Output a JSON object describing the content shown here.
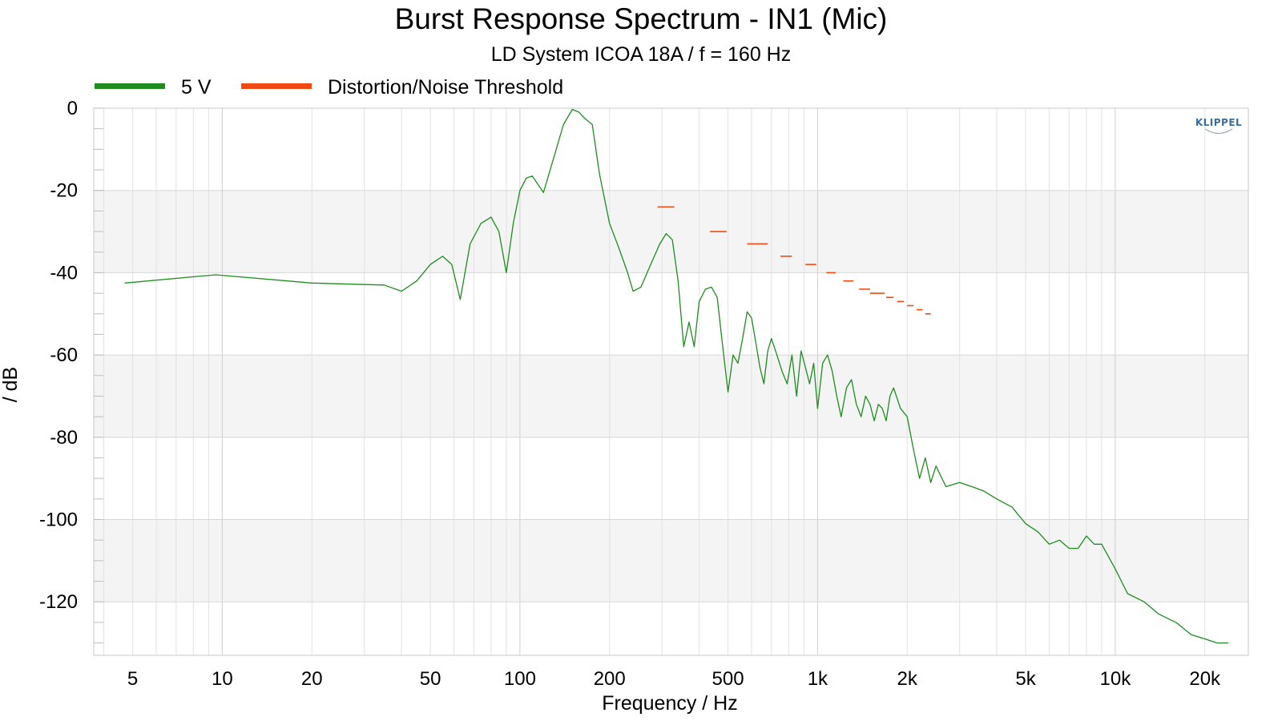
{
  "chart_data": {
    "type": "line",
    "title": "Burst Response Spectrum - IN1 (Mic)",
    "subtitle": "LD System ICOA 18A / f = 160 Hz",
    "xlabel": "Frequency / Hz",
    "ylabel": "/ dB",
    "xscale": "log",
    "xlim": [
      3.7,
      28000
    ],
    "ylim": [
      -133,
      0
    ],
    "x_ticks": [
      5,
      10,
      20,
      50,
      100,
      200,
      500,
      1000,
      2000,
      5000,
      10000,
      20000
    ],
    "x_tick_labels": [
      "5",
      "10",
      "20",
      "50",
      "100",
      "200",
      "500",
      "1k",
      "2k",
      "5k",
      "10k",
      "20k"
    ],
    "y_ticks": [
      0,
      -20,
      -40,
      -60,
      -80,
      -100,
      -120
    ],
    "y_tick_labels": [
      "0",
      "-20",
      "-40",
      "-60",
      "-80",
      "-100",
      "-120"
    ],
    "grid": true,
    "legend_position": "top-left",
    "watermark": "KLIPPEL",
    "series": [
      {
        "name": "5 V",
        "color": "#1e8c1e",
        "x": [
          4.7,
          9.5,
          20,
          35,
          40,
          45,
          50,
          55,
          59,
          63,
          68,
          74,
          80,
          85,
          90,
          95,
          100,
          105,
          110,
          120,
          130,
          140,
          150,
          158,
          165,
          175,
          185,
          200,
          215,
          230,
          240,
          255,
          275,
          295,
          310,
          325,
          340,
          355,
          370,
          385,
          400,
          420,
          440,
          460,
          480,
          500,
          520,
          540,
          560,
          580,
          600,
          620,
          640,
          660,
          680,
          700,
          730,
          760,
          790,
          820,
          850,
          880,
          910,
          940,
          970,
          1000,
          1040,
          1080,
          1120,
          1160,
          1200,
          1250,
          1300,
          1350,
          1400,
          1450,
          1500,
          1550,
          1600,
          1650,
          1700,
          1750,
          1800,
          1900,
          2000,
          2100,
          2200,
          2300,
          2400,
          2500,
          2700,
          3000,
          3300,
          3600,
          4000,
          4500,
          5000,
          5500,
          6000,
          6500,
          7000,
          7500,
          8000,
          8500,
          9000,
          10000,
          11000,
          12500,
          14000,
          16000,
          18000,
          20000,
          22000,
          24000
        ],
        "y": [
          -42.5,
          -40.5,
          -42.5,
          -43,
          -44.5,
          -42,
          -38,
          -36,
          -38,
          -46.5,
          -33,
          -28,
          -26.5,
          -30,
          -40,
          -28,
          -20,
          -17,
          -16.5,
          -20.5,
          -12,
          -4,
          -0.3,
          -1,
          -2.5,
          -4,
          -16,
          -28,
          -34,
          -40,
          -44.5,
          -43.5,
          -38,
          -33,
          -30.5,
          -32,
          -42,
          -58,
          -52,
          -58,
          -47,
          -44,
          -43.5,
          -46,
          -58,
          -69,
          -60,
          -62,
          -56,
          -49.5,
          -51,
          -57,
          -63,
          -67,
          -59,
          -56,
          -60,
          -64,
          -67,
          -60,
          -70,
          -59,
          -63,
          -67,
          -62,
          -73,
          -62,
          -60,
          -64,
          -70,
          -75,
          -68,
          -66,
          -72,
          -75,
          -70,
          -72,
          -76,
          -72,
          -73,
          -76,
          -70,
          -68,
          -73,
          -75,
          -83,
          -90,
          -85,
          -91,
          -87,
          -92,
          -91,
          -92,
          -93,
          -95,
          -97,
          -101,
          -103,
          -106,
          -105,
          -107,
          -107,
          -104,
          -106,
          -106,
          -112,
          -118,
          -120,
          -123,
          -125,
          -128,
          -129,
          -130,
          -130
        ]
      },
      {
        "name": "Distortion/Noise Threshold",
        "color": "#f04a12",
        "segments": [
          {
            "x": [
              290,
              330
            ],
            "y": -24
          },
          {
            "x": [
              435,
              495
            ],
            "y": -30
          },
          {
            "x": [
              580,
              680
            ],
            "y": -33
          },
          {
            "x": [
              750,
              820
            ],
            "y": -36
          },
          {
            "x": [
              910,
              990
            ],
            "y": -38
          },
          {
            "x": [
              1070,
              1150
            ],
            "y": -40
          },
          {
            "x": [
              1220,
              1320
            ],
            "y": -42
          },
          {
            "x": [
              1380,
              1500
            ],
            "y": -44
          },
          {
            "x": [
              1500,
              1680
            ],
            "y": -45
          },
          {
            "x": [
              1700,
              1800
            ],
            "y": -46
          },
          {
            "x": [
              1850,
              1950
            ],
            "y": -47
          },
          {
            "x": [
              2000,
              2100
            ],
            "y": -48
          },
          {
            "x": [
              2150,
              2250
            ],
            "y": -49
          },
          {
            "x": [
              2300,
              2400
            ],
            "y": -50
          }
        ]
      }
    ]
  }
}
